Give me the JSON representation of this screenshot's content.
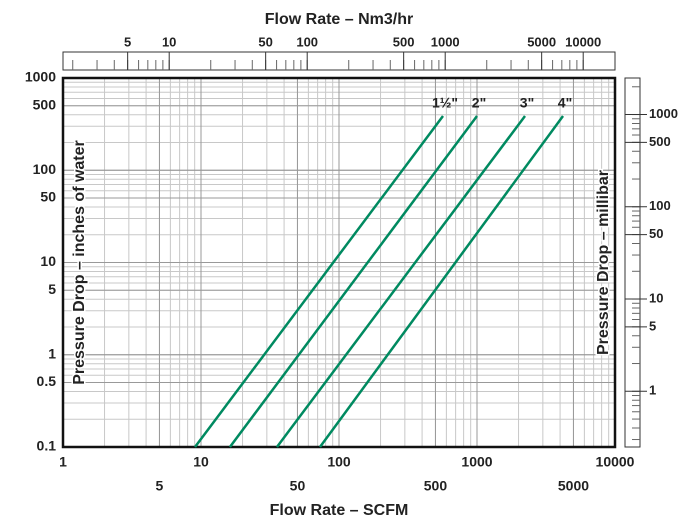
{
  "chart_data": {
    "type": "line",
    "x_label": "Flow Rate – SCFM",
    "x2_label": "Flow Rate – Nm3/hr",
    "y_label": "Pressure Drop – inches of water",
    "y2_label": "Pressure Drop – millibar",
    "log_x": true,
    "log_y": true,
    "grid": true,
    "minor_grid": true,
    "xlim": [
      1,
      10000
    ],
    "xticks": [
      1,
      5,
      10,
      50,
      100,
      500,
      1000,
      5000,
      10000
    ],
    "ylim": [
      0.1,
      1000
    ],
    "yticks": [
      0.1,
      0.5,
      1,
      5,
      10,
      50,
      100,
      500,
      1000
    ],
    "x2lim": [
      1.7,
      17000
    ],
    "x2ticks": [
      5,
      10,
      50,
      100,
      500,
      1000,
      5000,
      10000
    ],
    "y2lim": [
      0.249,
      2490
    ],
    "y2ticks": [
      1,
      5,
      10,
      50,
      100,
      500,
      1000
    ],
    "series": [
      {
        "name": "1½\"",
        "color": "#008a60",
        "x": [
          9.05,
          567
        ],
        "values": [
          0.1,
          387
        ]
      },
      {
        "name": "2\"",
        "color": "#008a60",
        "x": [
          16.2,
          1000
        ],
        "values": [
          0.1,
          387
        ]
      },
      {
        "name": "3\"",
        "color": "#008a60",
        "x": [
          35.5,
          2228
        ],
        "values": [
          0.1,
          387
        ]
      },
      {
        "name": "4\"",
        "color": "#008a60",
        "x": [
          72.8,
          4200
        ],
        "values": [
          0.1,
          387
        ]
      }
    ]
  }
}
